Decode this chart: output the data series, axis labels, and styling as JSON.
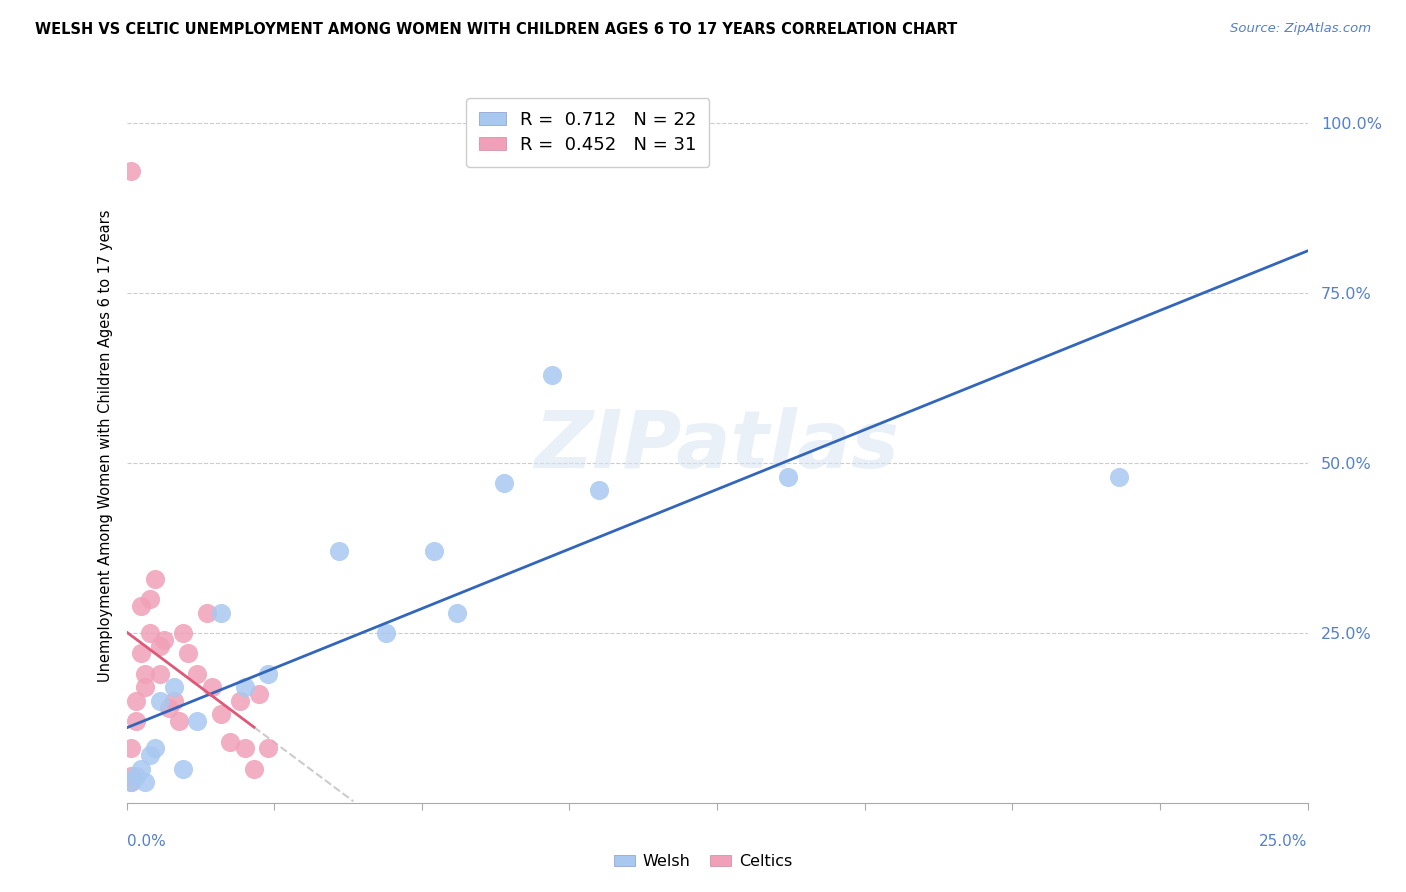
{
  "title": "WELSH VS CELTIC UNEMPLOYMENT AMONG WOMEN WITH CHILDREN AGES 6 TO 17 YEARS CORRELATION CHART",
  "source": "Source: ZipAtlas.com",
  "ylabel": "Unemployment Among Women with Children Ages 6 to 17 years",
  "xlim": [
    0.0,
    0.25
  ],
  "ylim": [
    0.0,
    1.05
  ],
  "welsh_R": "0.712",
  "welsh_N": "22",
  "celtic_R": "0.452",
  "celtic_N": "31",
  "welsh_scatter_color": "#a8c8f0",
  "celtic_scatter_color": "#f0a0b8",
  "welsh_line_color": "#3366bb",
  "celtic_line_color": "#e05878",
  "dash_color": "#cccccc",
  "watermark": "ZIPatlas",
  "welsh_x": [
    0.001,
    0.002,
    0.003,
    0.004,
    0.005,
    0.006,
    0.007,
    0.01,
    0.012,
    0.015,
    0.02,
    0.025,
    0.03,
    0.045,
    0.055,
    0.065,
    0.07,
    0.08,
    0.09,
    0.1,
    0.14,
    0.21
  ],
  "welsh_y": [
    0.03,
    0.04,
    0.05,
    0.03,
    0.07,
    0.08,
    0.15,
    0.17,
    0.05,
    0.12,
    0.28,
    0.17,
    0.19,
    0.37,
    0.25,
    0.37,
    0.28,
    0.47,
    0.63,
    0.46,
    0.48,
    0.48
  ],
  "celtic_x": [
    0.001,
    0.001,
    0.001,
    0.002,
    0.002,
    0.003,
    0.003,
    0.004,
    0.004,
    0.005,
    0.005,
    0.006,
    0.007,
    0.007,
    0.008,
    0.009,
    0.01,
    0.011,
    0.012,
    0.013,
    0.015,
    0.017,
    0.018,
    0.02,
    0.022,
    0.024,
    0.025,
    0.027,
    0.028,
    0.03,
    0.001
  ],
  "celtic_y": [
    0.08,
    0.04,
    0.03,
    0.15,
    0.12,
    0.29,
    0.22,
    0.19,
    0.17,
    0.3,
    0.25,
    0.33,
    0.19,
    0.23,
    0.24,
    0.14,
    0.15,
    0.12,
    0.25,
    0.22,
    0.19,
    0.28,
    0.17,
    0.13,
    0.09,
    0.15,
    0.08,
    0.05,
    0.16,
    0.08,
    0.93
  ]
}
